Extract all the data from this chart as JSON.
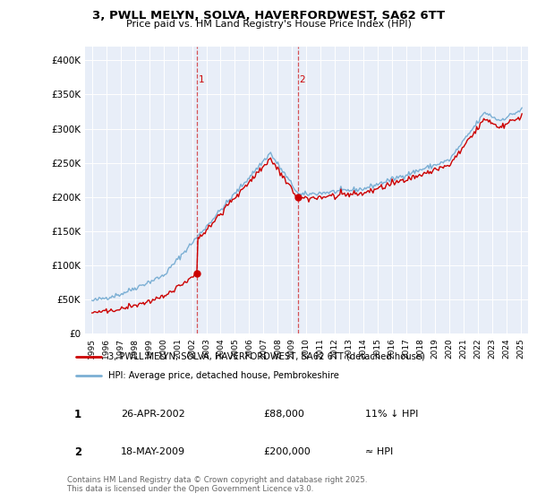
{
  "title1": "3, PWLL MELYN, SOLVA, HAVERFORDWEST, SA62 6TT",
  "title2": "Price paid vs. HM Land Registry's House Price Index (HPI)",
  "sale1_date": "26-APR-2002",
  "sale1_price": 88000,
  "sale1_label": "11% ↓ HPI",
  "sale2_date": "18-MAY-2009",
  "sale2_price": 200000,
  "sale2_label": "≈ HPI",
  "sale1_x": 2002.32,
  "sale2_x": 2009.38,
  "legend_line1": "3, PWLL MELYN, SOLVA, HAVERFORDWEST, SA62 6TT (detached house)",
  "legend_line2": "HPI: Average price, detached house, Pembrokeshire",
  "footer": "Contains HM Land Registry data © Crown copyright and database right 2025.\nThis data is licensed under the Open Government Licence v3.0.",
  "line_color_red": "#cc0000",
  "line_color_blue": "#7bafd4",
  "vline_color": "#cc0000",
  "background_color": "#ffffff",
  "plot_bg_color": "#e8eef8",
  "ylim_max": 420000,
  "xlim_min": 1994.5,
  "xlim_max": 2025.5
}
